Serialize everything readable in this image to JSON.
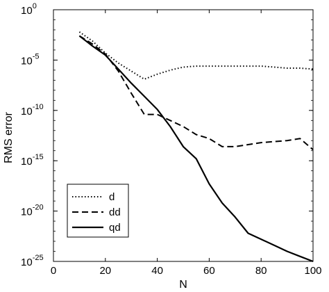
{
  "chart_data": {
    "type": "line",
    "title": "",
    "xlabel": "N",
    "ylabel": "RMS error",
    "xlim": [
      0,
      100
    ],
    "ylim_log10": [
      -25,
      0
    ],
    "y_scale": "log",
    "grid": false,
    "legend_position": "bottom-left",
    "x_ticks": [
      {
        "value": 0,
        "label": "0"
      },
      {
        "value": 20,
        "label": "20"
      },
      {
        "value": 40,
        "label": "40"
      },
      {
        "value": 60,
        "label": "60"
      },
      {
        "value": 80,
        "label": "80"
      },
      {
        "value": 100,
        "label": "100"
      }
    ],
    "y_ticks": [
      {
        "exp": 0,
        "base": "10",
        "power": "0"
      },
      {
        "exp": -5,
        "base": "10",
        "power": "-5"
      },
      {
        "exp": -10,
        "base": "10",
        "power": "-10"
      },
      {
        "exp": -15,
        "base": "10",
        "power": "-15"
      },
      {
        "exp": -20,
        "base": "10",
        "power": "-20"
      },
      {
        "exp": -25,
        "base": "10",
        "power": "-25"
      }
    ],
    "series": [
      {
        "name": "d",
        "style": "dotted",
        "color": "#000000",
        "x": [
          10,
          15,
          20,
          25,
          30,
          35,
          40,
          45,
          50,
          55,
          60,
          65,
          70,
          75,
          80,
          85,
          90,
          95,
          100
        ],
        "y_log10": [
          -2.2,
          -3.1,
          -4.3,
          -5.3,
          -6.1,
          -6.9,
          -6.4,
          -6.0,
          -5.7,
          -5.6,
          -5.6,
          -5.6,
          -5.6,
          -5.6,
          -5.6,
          -5.7,
          -5.8,
          -5.8,
          -5.9
        ]
      },
      {
        "name": "dd",
        "style": "dashed",
        "color": "#000000",
        "x": [
          10,
          15,
          20,
          25,
          30,
          35,
          40,
          45,
          50,
          55,
          60,
          65,
          70,
          75,
          80,
          85,
          90,
          95,
          100
        ],
        "y_log10": [
          -2.6,
          -3.4,
          -4.4,
          -6.1,
          -8.3,
          -10.4,
          -10.4,
          -11.0,
          -11.6,
          -12.4,
          -12.8,
          -13.6,
          -13.6,
          -13.4,
          -13.2,
          -13.1,
          -13.0,
          -12.8,
          -13.9
        ]
      },
      {
        "name": "qd",
        "style": "solid",
        "color": "#000000",
        "x": [
          10,
          15,
          20,
          25,
          30,
          35,
          40,
          45,
          50,
          55,
          60,
          65,
          70,
          75,
          80,
          85,
          90,
          95,
          100
        ],
        "y_log10": [
          -2.6,
          -3.6,
          -4.5,
          -5.9,
          -7.3,
          -8.6,
          -9.9,
          -11.6,
          -13.6,
          -14.8,
          -17.3,
          -19.2,
          -20.6,
          -22.2,
          -22.8,
          -23.4,
          -24.0,
          -24.5,
          -25.0
        ]
      }
    ]
  }
}
